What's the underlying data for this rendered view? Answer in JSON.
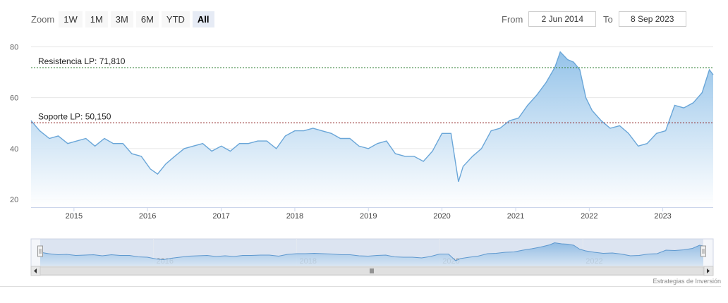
{
  "zoom": {
    "label": "Zoom",
    "buttons": [
      "1W",
      "1M",
      "3M",
      "6M",
      "YTD",
      "All"
    ],
    "selected": "All"
  },
  "range": {
    "from_label": "From",
    "from_value": "2 Jun 2014",
    "to_label": "To",
    "to_value": "8 Sep 2023"
  },
  "credit": "Estrategias de Inversión",
  "colors": {
    "line": "#6aa6d8",
    "area_top": "#8fc0e8",
    "area_bottom": "#ffffff",
    "resistance": "#2e7d32",
    "support": "#8b1a1a",
    "selected_button": "#e6ebf5"
  },
  "chart_data": {
    "type": "area",
    "title": "",
    "xlabel": "",
    "ylabel": "",
    "ylim": [
      17,
      84
    ],
    "yticks": [
      20,
      40,
      60,
      80
    ],
    "xlim": [
      "2014-06-02",
      "2023-09-08"
    ],
    "xticks": [
      "2015",
      "2016",
      "2017",
      "2018",
      "2019",
      "2020",
      "2021",
      "2022",
      "2023"
    ],
    "grid": true,
    "legend": "none",
    "series": [
      {
        "name": "",
        "x": [
          "2014-06-02",
          "2014-07-15",
          "2014-09-01",
          "2014-10-15",
          "2014-12-01",
          "2015-01-15",
          "2015-03-01",
          "2015-04-15",
          "2015-06-01",
          "2015-07-15",
          "2015-09-01",
          "2015-10-15",
          "2015-12-01",
          "2016-01-15",
          "2016-02-20",
          "2016-04-01",
          "2016-05-15",
          "2016-07-01",
          "2016-08-15",
          "2016-10-01",
          "2016-11-15",
          "2017-01-01",
          "2017-02-15",
          "2017-04-01",
          "2017-05-15",
          "2017-07-01",
          "2017-08-15",
          "2017-10-01",
          "2017-11-15",
          "2018-01-01",
          "2018-02-15",
          "2018-04-01",
          "2018-05-15",
          "2018-07-01",
          "2018-08-15",
          "2018-10-01",
          "2018-11-15",
          "2019-01-01",
          "2019-02-15",
          "2019-04-01",
          "2019-05-15",
          "2019-07-01",
          "2019-08-15",
          "2019-10-01",
          "2019-11-15",
          "2020-01-01",
          "2020-02-15",
          "2020-03-23",
          "2020-04-15",
          "2020-06-01",
          "2020-07-15",
          "2020-09-01",
          "2020-10-15",
          "2020-12-01",
          "2021-01-15",
          "2021-03-01",
          "2021-04-15",
          "2021-06-01",
          "2021-07-15",
          "2021-08-10",
          "2021-09-15",
          "2021-10-15",
          "2021-11-15",
          "2021-12-15",
          "2022-01-15",
          "2022-03-01",
          "2022-04-15",
          "2022-06-01",
          "2022-07-15",
          "2022-09-01",
          "2022-10-15",
          "2022-12-01",
          "2023-01-15",
          "2023-03-01",
          "2023-04-15",
          "2023-06-01",
          "2023-07-15",
          "2023-08-20",
          "2023-09-08"
        ],
        "values": [
          51,
          47,
          44,
          45,
          42,
          43,
          44,
          41,
          44,
          42,
          42,
          38,
          37,
          32,
          30,
          34,
          37,
          40,
          41,
          42,
          39,
          41,
          39,
          42,
          42,
          43,
          43,
          40,
          45,
          47,
          47,
          48,
          47,
          46,
          44,
          44,
          41,
          40,
          42,
          43,
          38,
          37,
          37,
          35,
          39,
          46,
          46,
          27,
          33,
          37,
          40,
          47,
          48,
          51,
          52,
          57,
          61,
          66,
          72,
          78,
          75,
          74,
          71,
          60,
          55,
          51,
          48,
          49,
          46,
          41,
          42,
          46,
          47,
          57,
          56,
          58,
          62,
          71,
          69
        ]
      }
    ],
    "annotations": [
      {
        "label": "Resistencia LP: 71,810",
        "value": 71.81
      },
      {
        "label": "Soporte LP: 50,150",
        "value": 50.15
      }
    ],
    "navigator": {
      "xticks": [
        "2016",
        "2018",
        "2020",
        "2022"
      ]
    }
  }
}
